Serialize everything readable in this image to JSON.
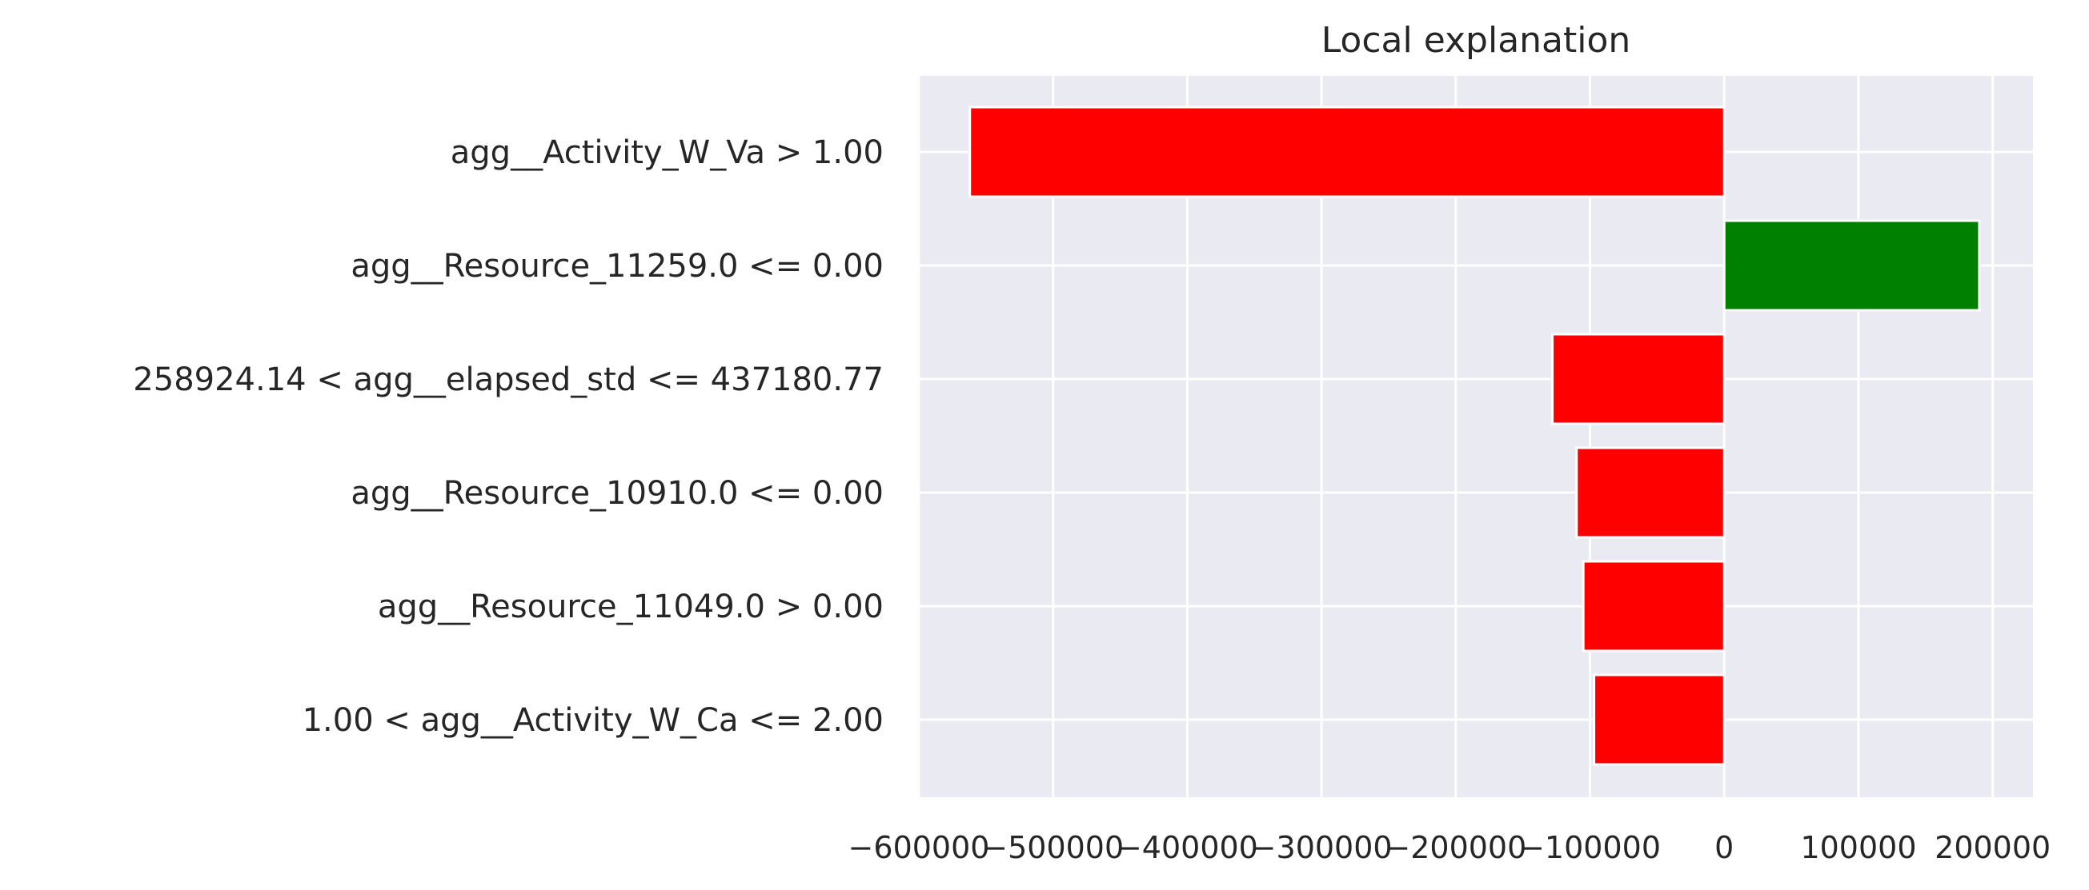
{
  "chart_data": {
    "type": "bar",
    "orientation": "horizontal",
    "title": "Local explanation",
    "xlabel": "",
    "ylabel": "",
    "categories": [
      "agg__Activity_W_Va > 1.00",
      "agg__Resource_11259.0 <= 0.00",
      "258924.14 < agg__elapsed_std <= 437180.77",
      "agg__Resource_10910.0 <= 0.00",
      "agg__Resource_11049.0 > 0.00",
      "1.00 < agg__Activity_W_Ca <= 2.00"
    ],
    "values": [
      -562000,
      190000,
      -128000,
      -110000,
      -105000,
      -97000
    ],
    "xlim": [
      -600000,
      230000
    ],
    "xticks": [
      -600000,
      -500000,
      -400000,
      -300000,
      -200000,
      -100000,
      0,
      100000,
      200000
    ],
    "xtick_labels": [
      "−600000",
      "−500000",
      "−400000",
      "−300000",
      "−200000",
      "−100000",
      "0",
      "100000",
      "200000"
    ],
    "colors": {
      "negative": "#ff0000",
      "positive": "#008000",
      "background": "#eaeaf2",
      "grid": "#ffffff"
    },
    "grid": true,
    "legend": "none"
  }
}
